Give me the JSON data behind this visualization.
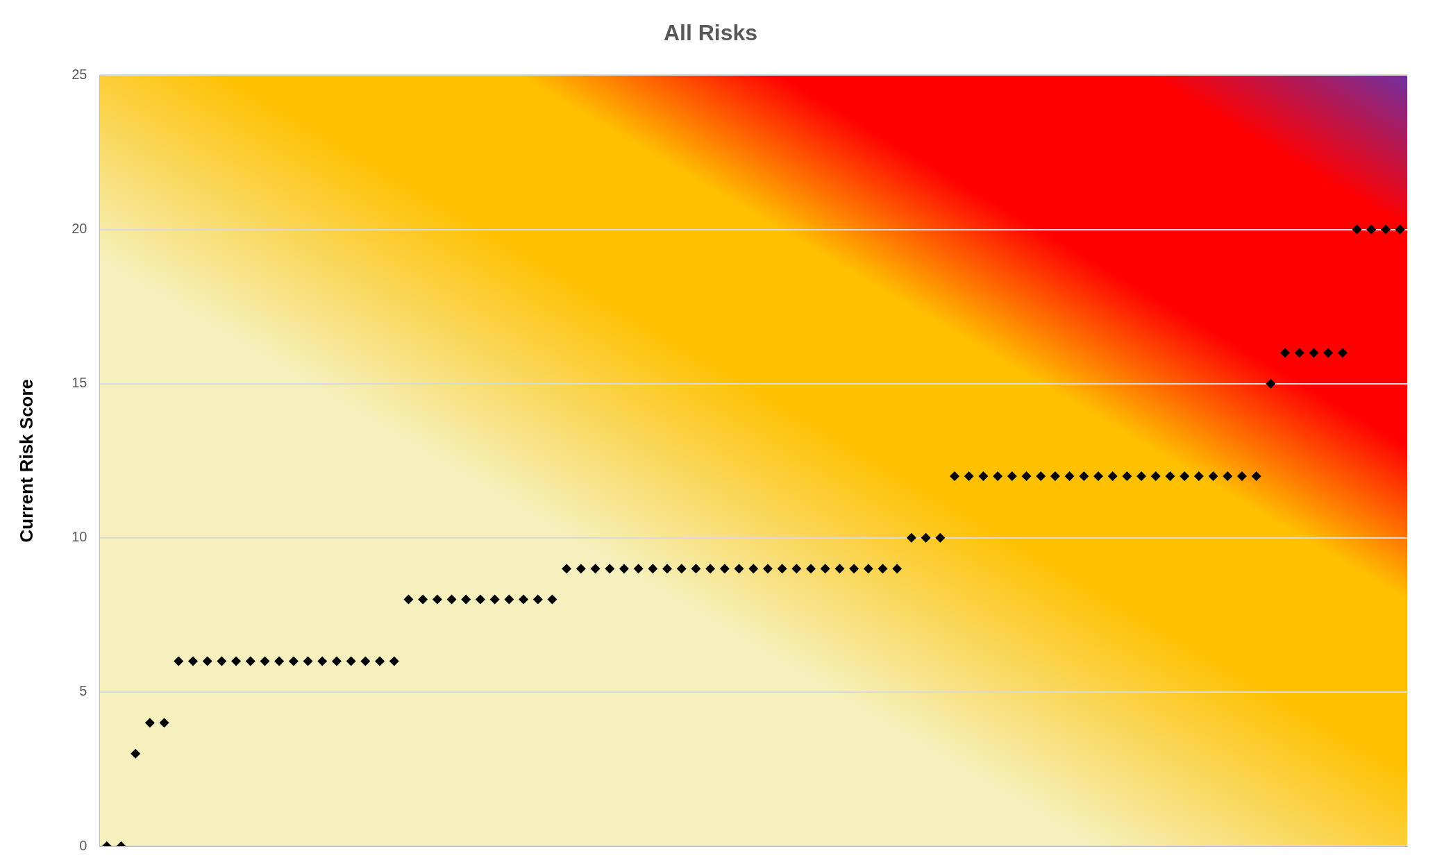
{
  "chart_data": {
    "type": "scatter",
    "title": "All Risks",
    "ylabel": "Current Risk Score",
    "categories": [
      null,
      null,
      null,
      null,
      null,
      null,
      null,
      null,
      null,
      null,
      null,
      null,
      null,
      null,
      null,
      null,
      null,
      null,
      null,
      null,
      null,
      null,
      null,
      null,
      null,
      null,
      null,
      null,
      null,
      null,
      null,
      null,
      null,
      null,
      null,
      null,
      null,
      null,
      null,
      null,
      null,
      null,
      null,
      null,
      null,
      null,
      null,
      null,
      null,
      null,
      null,
      null,
      null,
      null,
      null,
      null,
      null,
      null,
      null,
      null,
      null,
      null,
      null,
      null,
      null,
      null,
      null,
      null,
      null,
      null,
      null,
      null,
      null,
      null,
      null,
      null,
      null,
      null,
      null,
      null,
      null,
      null,
      null,
      null,
      null,
      null,
      null,
      null,
      null,
      null,
      null
    ],
    "values": [
      0,
      0,
      3,
      4,
      4,
      6,
      6,
      6,
      6,
      6,
      6,
      6,
      6,
      6,
      6,
      6,
      6,
      6,
      6,
      6,
      6,
      8,
      8,
      8,
      8,
      8,
      8,
      8,
      8,
      8,
      8,
      8,
      9,
      9,
      9,
      9,
      9,
      9,
      9,
      9,
      9,
      9,
      9,
      9,
      9,
      9,
      9,
      9,
      9,
      9,
      9,
      9,
      9,
      9,
      9,
      9,
      10,
      10,
      10,
      12,
      12,
      12,
      12,
      12,
      12,
      12,
      12,
      12,
      12,
      12,
      12,
      12,
      12,
      12,
      12,
      12,
      12,
      12,
      12,
      12,
      12,
      15,
      16,
      16,
      16,
      16,
      16,
      20,
      20,
      20,
      20
    ],
    "color": "#000000",
    "marker": "diamond",
    "ylim": [
      0,
      25
    ],
    "yticks": [
      0,
      5,
      10,
      15,
      20,
      25
    ],
    "grid": "y",
    "tick_labels": "y"
  }
}
